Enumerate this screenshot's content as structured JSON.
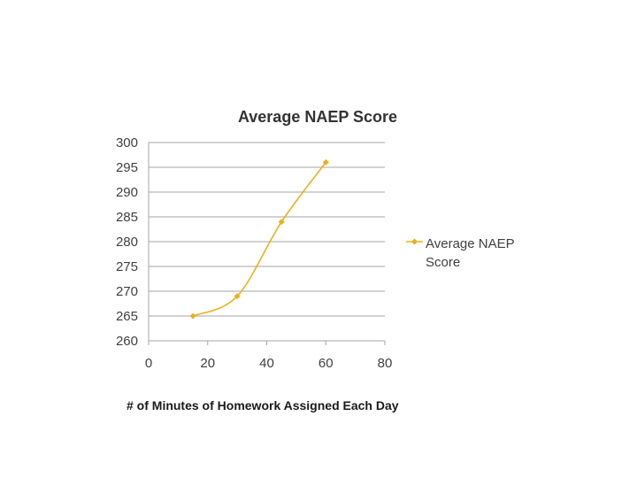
{
  "chart_data": {
    "type": "line",
    "title": "Average NAEP Score",
    "xlabel": "",
    "ylabel": "",
    "x_ticks": [
      "0",
      "20",
      "40",
      "60",
      "80"
    ],
    "y_ticks": [
      "260",
      "265",
      "270",
      "275",
      "280",
      "285",
      "290",
      "295",
      "300"
    ],
    "xlim": [
      0,
      80
    ],
    "ylim": [
      260,
      300
    ],
    "grid": "horizontal",
    "legend_position": "right",
    "series": [
      {
        "name": "Average NAEP Score",
        "color": "#E8B21E",
        "x": [
          15,
          30,
          45,
          60
        ],
        "y": [
          265,
          269,
          284,
          296
        ]
      }
    ]
  },
  "caption": "# of Minutes of Homework Assigned Each Day"
}
